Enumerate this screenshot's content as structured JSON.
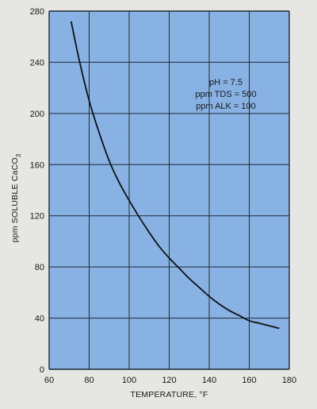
{
  "chart_data": {
    "type": "line",
    "title": "",
    "xlabel": "TEMPERATURE, °F",
    "ylabel_main": "ppm SOLUBLE CaCO",
    "ylabel_sub": "3",
    "xlim": [
      60,
      180
    ],
    "ylim": [
      0,
      280
    ],
    "xticks": [
      60,
      80,
      100,
      120,
      140,
      160,
      180
    ],
    "yticks": [
      0,
      40,
      80,
      120,
      160,
      200,
      240,
      280
    ],
    "grid": true,
    "colors": {
      "plot_background": "#87b2e3",
      "grid": "#1f2a36",
      "line": "#111111",
      "page_background": "#e6e7e2"
    },
    "annotations": [
      "pH = 7.5",
      "ppm TDS = 500",
      "ppm ALK = 100"
    ],
    "series": [
      {
        "x": [
          71,
          75,
          80,
          85,
          90,
          95,
          100,
          105,
          110,
          115,
          120,
          125,
          130,
          135,
          140,
          145,
          150,
          155,
          160,
          165,
          170,
          175
        ],
        "y": [
          272,
          242,
          210,
          185,
          163,
          146,
          132,
          119,
          107,
          96,
          87,
          79,
          71,
          64,
          57,
          51,
          46,
          42,
          38,
          36,
          34,
          32
        ]
      }
    ]
  }
}
